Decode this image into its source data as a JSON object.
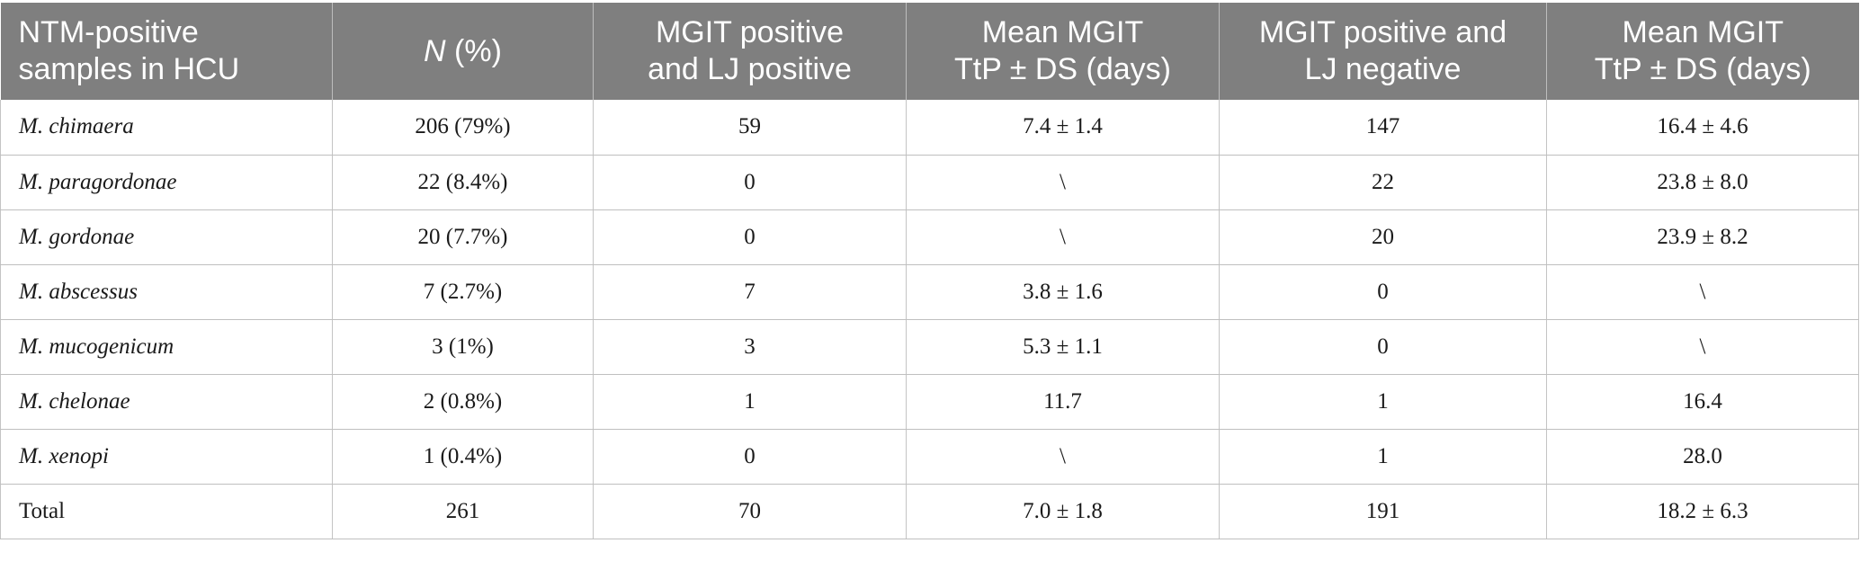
{
  "table": {
    "headers": [
      {
        "line1": "NTM-positive",
        "line2": "samples in HCU"
      },
      {
        "italic": "N",
        "rest": " (%)"
      },
      {
        "line1": "MGIT positive",
        "line2": "and LJ positive"
      },
      {
        "line1": "Mean MGIT",
        "line2": "TtP ± DS (days)"
      },
      {
        "line1": "MGIT positive and",
        "line2": "LJ negative"
      },
      {
        "line1": "Mean MGIT",
        "line2": "TtP ± DS (days)"
      }
    ],
    "rows": [
      {
        "species": "M. chimaera",
        "n": "206 (79%)",
        "pos_pos": "59",
        "ttp1": "7.4 ± 1.4",
        "pos_neg": "147",
        "ttp2": "16.4 ± 4.6"
      },
      {
        "species": "M. paragordonae",
        "n": "22 (8.4%)",
        "pos_pos": "0",
        "ttp1": "\\",
        "pos_neg": "22",
        "ttp2": "23.8 ± 8.0"
      },
      {
        "species": "M. gordonae",
        "n": "20 (7.7%)",
        "pos_pos": "0",
        "ttp1": "\\",
        "pos_neg": "20",
        "ttp2": "23.9 ± 8.2"
      },
      {
        "species": "M. abscessus",
        "n": "7 (2.7%)",
        "pos_pos": "7",
        "ttp1": "3.8 ± 1.6",
        "pos_neg": "0",
        "ttp2": "\\"
      },
      {
        "species": "M. mucogenicum",
        "n": "3 (1%)",
        "pos_pos": "3",
        "ttp1": "5.3 ± 1.1",
        "pos_neg": "0",
        "ttp2": "\\"
      },
      {
        "species": "M. chelonae",
        "n": "2 (0.8%)",
        "pos_pos": "1",
        "ttp1": "11.7",
        "pos_neg": "1",
        "ttp2": "16.4"
      },
      {
        "species": "M. xenopi",
        "n": "1 (0.4%)",
        "pos_pos": "0",
        "ttp1": "\\",
        "pos_neg": "1",
        "ttp2": "28.0"
      }
    ],
    "total": {
      "label": "Total",
      "n": "261",
      "pos_pos": "70",
      "ttp1": "7.0 ± 1.8",
      "pos_neg": "191",
      "ttp2": "18.2 ± 6.3"
    }
  },
  "colors": {
    "header_bg": "#7f7f7f",
    "header_text": "#ffffff",
    "grid": "#bfbfbf"
  }
}
